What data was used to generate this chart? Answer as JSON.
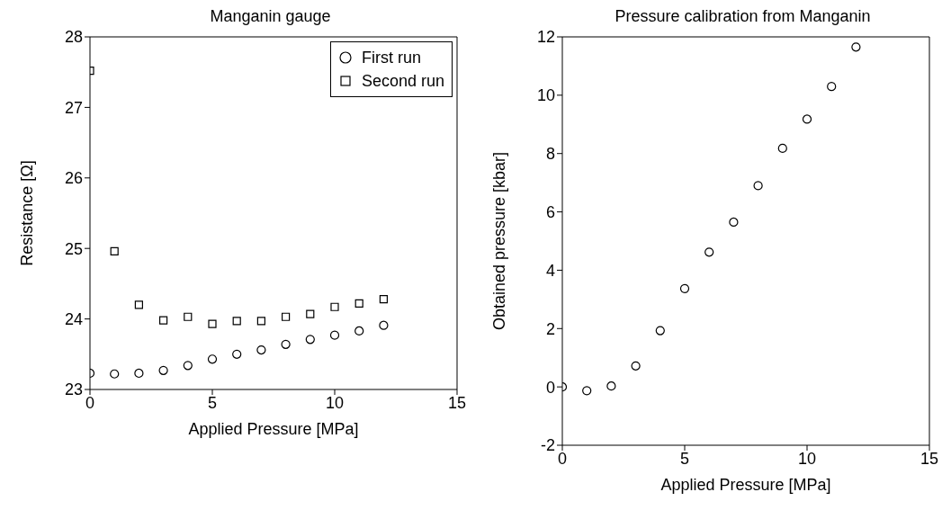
{
  "chart_data": [
    {
      "type": "scatter",
      "title": "Manganin gauge",
      "xlabel": "Applied Pressure [MPa]",
      "ylabel": "Resistance [Ω]",
      "x": [
        0,
        1,
        2,
        3,
        4,
        5,
        6,
        7,
        8,
        9,
        10,
        11,
        12
      ],
      "series": [
        {
          "name": "First run",
          "color": "#000000",
          "marker": "circle",
          "values": [
            23.23,
            23.22,
            23.23,
            23.27,
            23.34,
            23.43,
            23.5,
            23.56,
            23.64,
            23.71,
            23.77,
            23.83,
            23.91
          ]
        },
        {
          "name": "Second run",
          "color": "#000000",
          "marker": "square",
          "values": [
            27.52,
            24.96,
            24.2,
            23.98,
            24.03,
            23.93,
            23.97,
            23.97,
            24.03,
            24.07,
            24.17,
            24.22,
            24.28
          ]
        }
      ],
      "xlim": [
        0,
        15
      ],
      "xticks": [
        0,
        5,
        10,
        15
      ],
      "ylim": [
        23,
        28
      ],
      "yticks": [
        23,
        24,
        25,
        26,
        27,
        28
      ],
      "legend": "top right"
    },
    {
      "type": "scatter",
      "title": "Pressure calibration from Manganin",
      "xlabel": "Applied Pressure [MPa]",
      "ylabel": "Obtained pressure [kbar]",
      "x": [
        0,
        1,
        2,
        3,
        4,
        5,
        6,
        7,
        8,
        9,
        10,
        11,
        12
      ],
      "series": [
        {
          "color": "#000000",
          "marker": "circle",
          "values": [
            0,
            -0.13,
            0.03,
            0.72,
            1.93,
            3.37,
            4.62,
            5.65,
            6.9,
            8.18,
            9.18,
            10.3,
            11.65
          ]
        }
      ],
      "xlim": [
        0,
        15
      ],
      "xticks": [
        0,
        5,
        10,
        15
      ],
      "ylim": [
        -2,
        12
      ],
      "yticks": [
        -2,
        0,
        2,
        4,
        6,
        8,
        10,
        12
      ],
      "legend": false
    }
  ]
}
